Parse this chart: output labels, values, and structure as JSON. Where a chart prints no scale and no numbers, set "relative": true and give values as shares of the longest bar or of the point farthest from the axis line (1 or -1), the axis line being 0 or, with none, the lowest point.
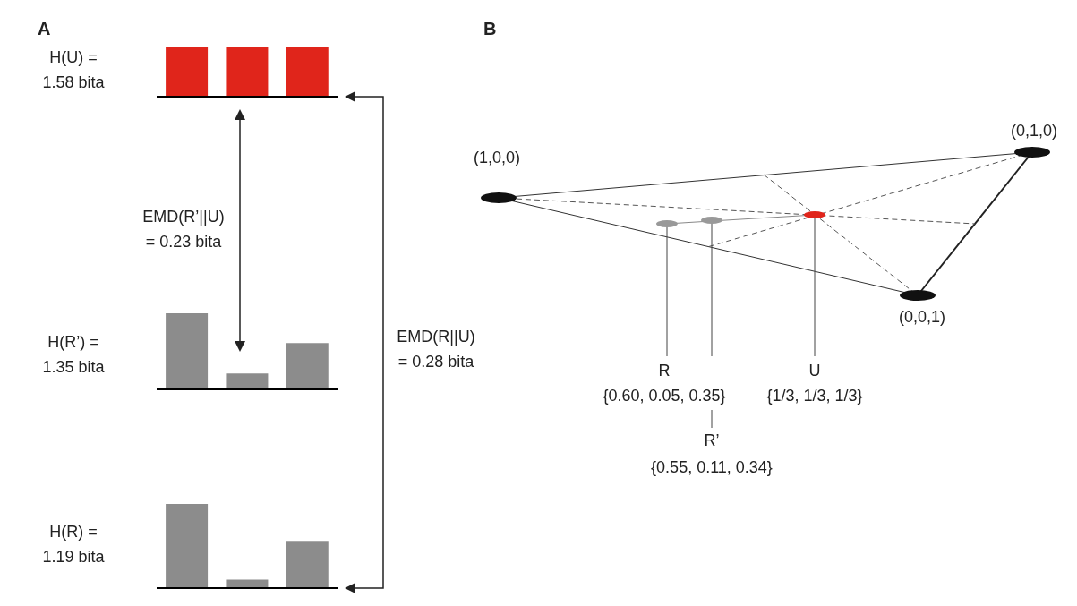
{
  "chart_data": [
    {
      "type": "bar",
      "title": "A",
      "ylabel": "H(U) =\n1.58 bita",
      "categories": [
        null,
        null,
        null
      ],
      "values": [
        1,
        1,
        1
      ],
      "relative": true,
      "color": "#e0251b",
      "annotations": [
        "EMD(R’||U)\n= 0.23 bita"
      ]
    },
    {
      "type": "bar",
      "ylabel": "H(R’) =\n1.35 bita",
      "categories": [
        null,
        null,
        null
      ],
      "values": [
        1,
        0.21,
        0.61
      ],
      "relative": true,
      "color": "#8c8c8c"
    },
    {
      "type": "bar",
      "ylabel": "H(R) =\n1.19 bita",
      "categories": [
        null,
        null,
        null
      ],
      "values": [
        1,
        0.1,
        0.56
      ],
      "relative": true,
      "color": "#8c8c8c",
      "annotations": [
        "EMD(R||U)\n= 0.28 bita"
      ]
    },
    {
      "type": "other",
      "title": "B",
      "annotations": [
        "(1,0,0)",
        "(0,1,0)",
        "(0,0,1)",
        "R",
        "{0.60, 0.05, 0.35}",
        "R’",
        "{0.55, 0.11, 0.34}",
        "U",
        "{1/3, 1/3, 1/3}"
      ]
    }
  ]
}
